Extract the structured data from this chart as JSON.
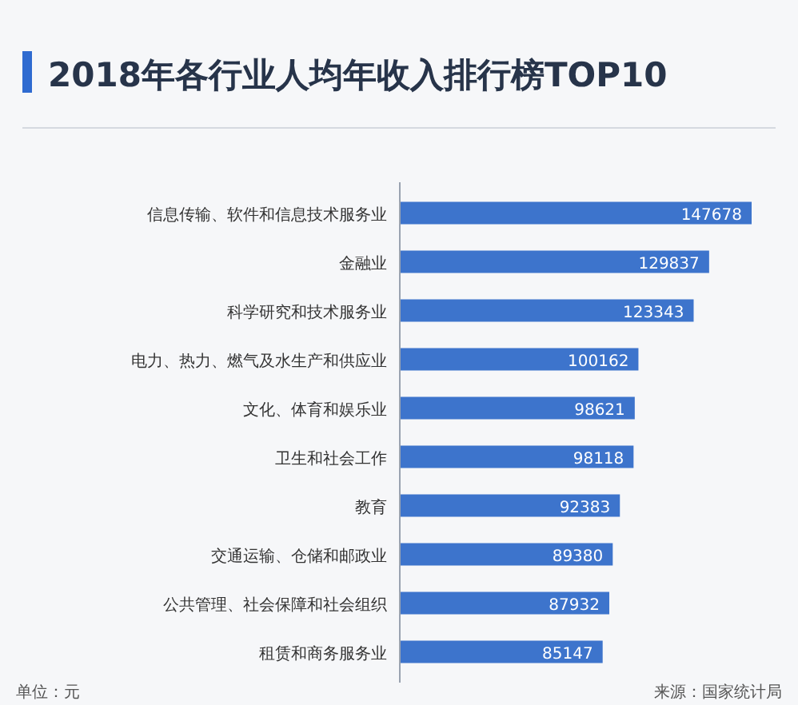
{
  "chart_data": {
    "type": "bar",
    "orientation": "horizontal",
    "title": "2018年各行业人均年收入排行榜TOP10",
    "categories": [
      "信息传输、软件和信息技术服务业",
      "金融业",
      "科学研究和技术服务业",
      "电力、热力、燃气及水生产和供应业",
      "文化、体育和娱乐业",
      "卫生和社会工作",
      "教育",
      "交通运输、仓储和邮政业",
      "公共管理、社会保障和社会组织",
      "租赁和商务服务业"
    ],
    "values": [
      147678,
      129837,
      123343,
      100162,
      98621,
      98118,
      92383,
      89380,
      87932,
      85147
    ],
    "color": "#3d74cc",
    "data_labels": true,
    "annotations": [
      "单位：元",
      "来源：国家统计局"
    ]
  }
}
